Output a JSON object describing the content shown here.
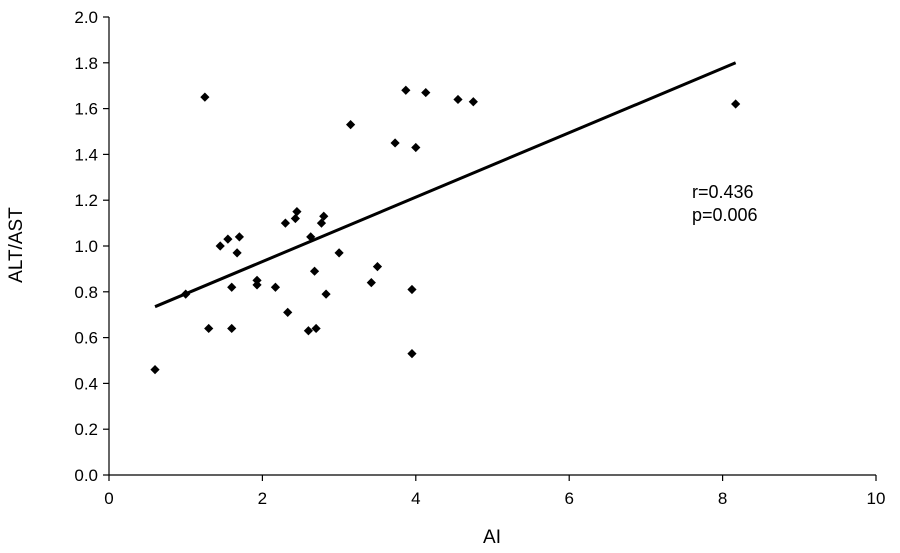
{
  "chart_data": {
    "type": "scatter",
    "xlabel": "AI",
    "ylabel": "ALT/AST",
    "xlim": [
      0,
      10
    ],
    "ylim": [
      0.0,
      2.0
    ],
    "x_ticks": [
      "0",
      "2",
      "4",
      "6",
      "8",
      "10"
    ],
    "y_ticks": [
      "0.0",
      "0.2",
      "0.4",
      "0.6",
      "0.8",
      "1.0",
      "1.2",
      "1.4",
      "1.6",
      "1.8",
      "2.0"
    ],
    "grid": false,
    "marker": "diamond",
    "points": [
      [
        0.6,
        0.46
      ],
      [
        1.0,
        0.79
      ],
      [
        1.25,
        1.65
      ],
      [
        1.3,
        0.64
      ],
      [
        1.45,
        1.0
      ],
      [
        1.55,
        1.03
      ],
      [
        1.6,
        0.82
      ],
      [
        1.6,
        0.64
      ],
      [
        1.67,
        0.97
      ],
      [
        1.7,
        1.04
      ],
      [
        1.93,
        0.83
      ],
      [
        1.93,
        0.85
      ],
      [
        2.17,
        0.82
      ],
      [
        2.3,
        1.1
      ],
      [
        2.33,
        0.71
      ],
      [
        2.43,
        1.12
      ],
      [
        2.45,
        1.15
      ],
      [
        2.6,
        0.63
      ],
      [
        2.63,
        1.04
      ],
      [
        2.68,
        0.89
      ],
      [
        2.7,
        0.64
      ],
      [
        2.77,
        1.1
      ],
      [
        2.8,
        1.13
      ],
      [
        2.83,
        0.79
      ],
      [
        3.0,
        0.97
      ],
      [
        3.15,
        1.53
      ],
      [
        3.42,
        0.84
      ],
      [
        3.5,
        0.91
      ],
      [
        3.73,
        1.45
      ],
      [
        3.87,
        1.68
      ],
      [
        3.95,
        0.81
      ],
      [
        3.95,
        0.53
      ],
      [
        4.0,
        1.43
      ],
      [
        4.13,
        1.67
      ],
      [
        4.55,
        1.64
      ],
      [
        4.75,
        1.63
      ],
      [
        8.17,
        1.62
      ]
    ],
    "trendline": {
      "x": [
        0.6,
        8.17
      ],
      "y": [
        0.735,
        1.8
      ]
    },
    "annotations": [
      "r=0.436",
      "p=0.006"
    ]
  }
}
